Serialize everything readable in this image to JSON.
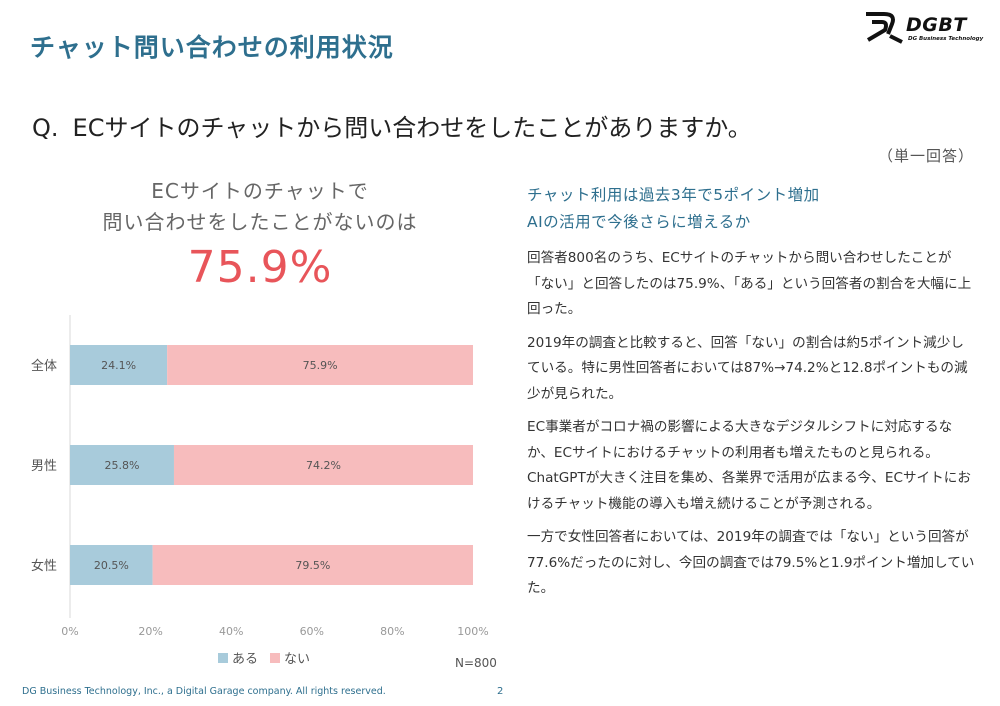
{
  "slide": {
    "title": "チャット問い合わせの利用状況",
    "logo_text": "DGBT",
    "logo_subtext": "DG Business Technology",
    "question_mark": "Q.",
    "question": "ECサイトのチャットから問い合わせをしたことがありますか。",
    "answer_type": "（単一回答）",
    "callout_line1": "ECサイトのチャットで",
    "callout_line2": "問い合わせをしたことがないのは",
    "callout_value": "75.9%",
    "headline_line1": "チャット利用は過去3年で5ポイント増加",
    "headline_line2": "AIの活用で今後さらに増えるか",
    "paragraphs": [
      "回答者800名のうち、ECサイトのチャットから問い合わせしたことが「ない」と回答したのは75.9%、「ある」という回答者の割合を大幅に上回った。",
      "2019年の調査と比較すると、回答「ない」の割合は約5ポイント減少している。特に男性回答者においては87%→74.2%と12.8ポイントもの減少が見られた。",
      "EC事業者がコロナ禍の影響による大きなデジタルシフトに対応するなか、ECサイトにおけるチャットの利用者も増えたものと見られる。ChatGPTが大きく注目を集め、各業界で活用が広まる今、ECサイトにおけるチャット機能の導入も増え続けることが予測される。",
      "一方で女性回答者においては、2019年の調査では「ない」という回答が77.6%だったのに対し、今回の調査では79.5%と1.9ポイント増加していた。"
    ],
    "footer": "DG Business Technology, Inc., a Digital Garage company. All rights reserved.",
    "page_number": "2",
    "sample_note": "N=800"
  },
  "colors": {
    "title": "#2e6f8e",
    "accent_red": "#e8555a",
    "series_aru": "#a8cbdb",
    "series_nai": "#f7bcbd"
  },
  "chart_data": {
    "type": "bar",
    "orientation": "horizontal",
    "stacked": true,
    "percent_scale": true,
    "categories": [
      "全体",
      "男性",
      "女性"
    ],
    "series": [
      {
        "name": "ある",
        "values": [
          24.1,
          25.8,
          20.5
        ],
        "labels": [
          "24.1%",
          "25.8%",
          "20.5%"
        ],
        "color": "#a8cbdb"
      },
      {
        "name": "ない",
        "values": [
          75.9,
          74.2,
          79.5
        ],
        "labels": [
          "75.9%",
          "74.2%",
          "79.5%"
        ],
        "color": "#f7bcbd"
      }
    ],
    "xlim": [
      0,
      100
    ],
    "xticks": [
      "0%",
      "20%",
      "40%",
      "60%",
      "80%",
      "100%"
    ],
    "legend": "bottom",
    "grid": false
  }
}
